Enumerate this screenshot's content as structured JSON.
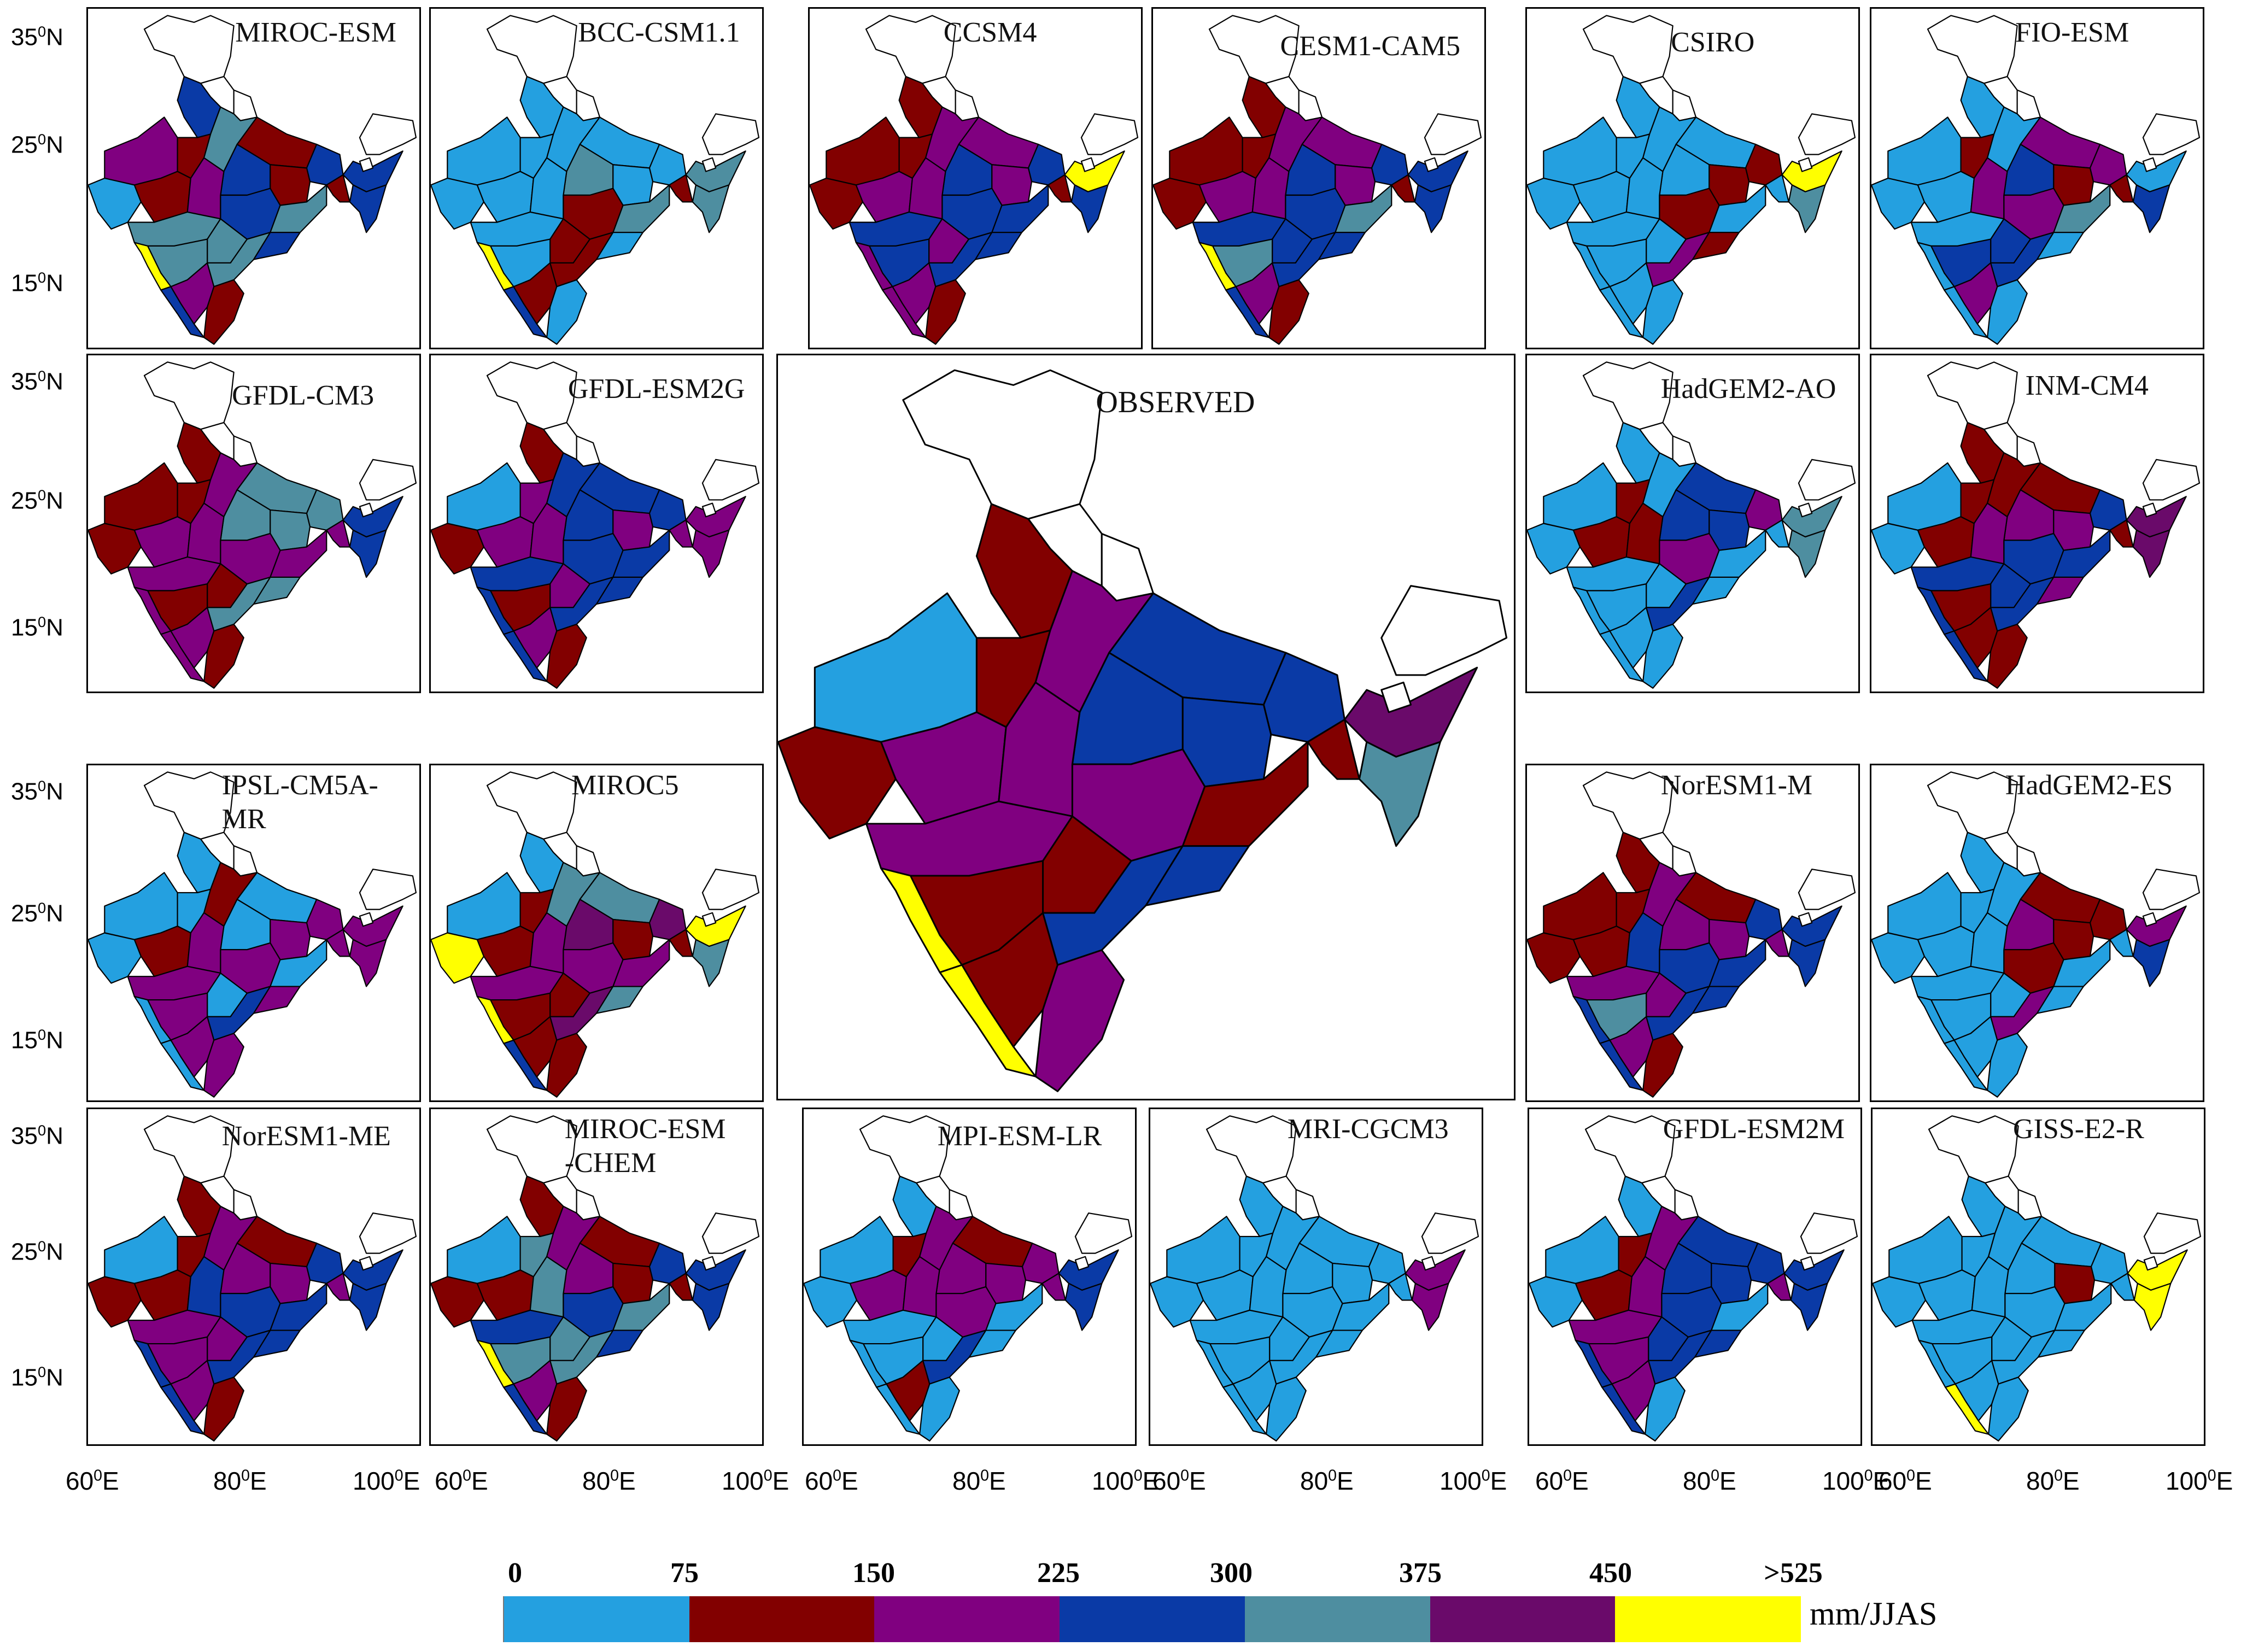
{
  "colors": {
    "0-75": "#24a0e0",
    "75-150": "#820000",
    "150-225": "#800080",
    "225-300": "#0a3aa6",
    "300-375": "#4e8ea0",
    "375-450": "#6a0a6a",
    ">525": "#ffff00",
    "none": "#ffffff"
  },
  "panels": [
    {
      "id": "miroc-esm",
      "label": "MIROC-ESM",
      "palette": [
        "150-225",
        "225-300",
        "75-150",
        "300-375",
        "0-75",
        "75-150",
        "75-150",
        "225-300",
        "150-225",
        "300-375",
        "225-300",
        "75-150",
        "225-300",
        "300-375",
        "300-375",
        "300-375",
        ">525",
        "225-300",
        "150-225",
        "300-375",
        "225-300",
        "75-150",
        "225-300",
        "225-300",
        "75-150"
      ]
    },
    {
      "id": "bcc-csm1-1",
      "label": "BCC-CSM1.1",
      "palette": [
        "0-75",
        "0-75",
        "0-75",
        "0-75",
        "0-75",
        "0-75",
        "0-75",
        "300-375",
        "0-75",
        "0-75",
        "0-75",
        "0-75",
        "75-150",
        "300-375",
        "75-150",
        "0-75",
        ">525",
        "225-300",
        "75-150",
        "75-150",
        "0-75",
        "0-75",
        "300-375",
        "300-375",
        "75-150"
      ]
    },
    {
      "id": "ccsm4",
      "label": "CCSM4",
      "palette": [
        "75-150",
        "75-150",
        "75-150",
        "150-225",
        "75-150",
        "150-225",
        "150-225",
        "225-300",
        "150-225",
        "225-300",
        "225-300",
        "150-225",
        "225-300",
        "225-300",
        "150-225",
        "225-300",
        "150-225",
        "150-225",
        "150-225",
        "225-300",
        "225-300",
        "75-150",
        ">525",
        "225-300",
        "75-150"
      ]
    },
    {
      "id": "cesm1-cam5",
      "label": "CESM1-CAM5",
      "palette": [
        "75-150",
        "75-150",
        "75-150",
        "150-225",
        "75-150",
        "150-225",
        "150-225",
        "225-300",
        "150-225",
        "225-300",
        "225-300",
        "150-225",
        "225-300",
        "300-375",
        "225-300",
        "300-375",
        ">525",
        "225-300",
        "150-225",
        "225-300",
        "225-300",
        "75-150",
        "225-300",
        "225-300",
        "75-150"
      ]
    },
    {
      "id": "csiro",
      "label": "CSIRO",
      "palette": [
        "0-75",
        "0-75",
        "0-75",
        "0-75",
        "0-75",
        "0-75",
        "0-75",
        "0-75",
        "0-75",
        "0-75",
        "75-150",
        "75-150",
        "75-150",
        "0-75",
        "0-75",
        "0-75",
        "0-75",
        "0-75",
        "0-75",
        "150-225",
        "75-150",
        "0-75",
        ">525",
        "300-375",
        "0-75"
      ]
    },
    {
      "id": "fio-esm",
      "label": "FIO-ESM",
      "palette": [
        "0-75",
        "0-75",
        "75-150",
        "0-75",
        "0-75",
        "0-75",
        "150-225",
        "225-300",
        "150-225",
        "0-75",
        "150-225",
        "75-150",
        "150-225",
        "300-375",
        "225-300",
        "225-300",
        "0-75",
        "0-75",
        "150-225",
        "225-300",
        "0-75",
        "0-75",
        "0-75",
        "225-300",
        "75-150"
      ]
    },
    {
      "id": "gfdl-cm3",
      "label": "GFDL-CM3",
      "palette": [
        "75-150",
        "75-150",
        "75-150",
        "150-225",
        "75-150",
        "150-225",
        "300-375",
        "300-375",
        "150-225",
        "150-225",
        "300-375",
        "300-375",
        "150-225",
        "150-225",
        "75-150",
        "75-150",
        "150-225",
        "150-225",
        "150-225",
        "300-375",
        "300-375",
        "75-150",
        "225-300",
        "225-300",
        "150-225"
      ]
    },
    {
      "id": "gfdl-esm2g",
      "label": "GFDL-ESM2G",
      "palette": [
        "0-75",
        "75-150",
        "150-225",
        "225-300",
        "75-150",
        "150-225",
        "225-300",
        "225-300",
        "150-225",
        "225-300",
        "225-300",
        "150-225",
        "225-300",
        "225-300",
        "150-225",
        "75-150",
        "225-300",
        "225-300",
        "150-225",
        "225-300",
        "225-300",
        "75-150",
        "150-225",
        "150-225",
        "150-225"
      ]
    },
    {
      "id": "observed",
      "label": "OBSERVED",
      "big": true,
      "palette": [
        "0-75",
        "75-150",
        "75-150",
        "150-225",
        "75-150",
        "150-225",
        "225-300",
        "225-300",
        "150-225",
        "150-225",
        "225-300",
        "225-300",
        "150-225",
        "75-150",
        "75-150",
        "75-150",
        ">525",
        ">525",
        "75-150",
        "225-300",
        "225-300",
        "150-225",
        "375-450",
        "300-375",
        "75-150"
      ]
    },
    {
      "id": "hadgem2-ao",
      "label": "HadGEM2-AO",
      "palette": [
        "0-75",
        "0-75",
        "75-150",
        "0-75",
        "0-75",
        "75-150",
        "225-300",
        "225-300",
        "75-150",
        "0-75",
        "150-225",
        "225-300",
        "150-225",
        "0-75",
        "0-75",
        "0-75",
        "0-75",
        "0-75",
        "0-75",
        "225-300",
        "0-75",
        "0-75",
        "300-375",
        "300-375",
        "0-75"
      ]
    },
    {
      "id": "inm-cm4",
      "label": "INM-CM4",
      "palette": [
        "0-75",
        "75-150",
        "75-150",
        "75-150",
        "0-75",
        "75-150",
        "75-150",
        "150-225",
        "150-225",
        "225-300",
        "225-300",
        "150-225",
        "225-300",
        "225-300",
        "225-300",
        "75-150",
        "225-300",
        "225-300",
        "75-150",
        "225-300",
        "150-225",
        "75-150",
        "375-450",
        "375-450",
        "75-150"
      ]
    },
    {
      "id": "ipsl-cm5a-mr",
      "label": "IPSL-CM5A-\nMR",
      "palette": [
        "0-75",
        "0-75",
        "0-75",
        "75-150",
        "0-75",
        "75-150",
        "0-75",
        "0-75",
        "150-225",
        "150-225",
        "150-225",
        "150-225",
        "150-225",
        "0-75",
        "0-75",
        "150-225",
        "0-75",
        "0-75",
        "150-225",
        "225-300",
        "150-225",
        "150-225",
        "150-225",
        "150-225",
        "150-225"
      ]
    },
    {
      "id": "miroc5",
      "label": "MIROC5",
      "palette": [
        "0-75",
        "0-75",
        "75-150",
        "300-375",
        ">525",
        "75-150",
        "300-375",
        "375-450",
        "150-225",
        "150-225",
        "375-450",
        "75-150",
        "150-225",
        "150-225",
        "75-150",
        "75-150",
        ">525",
        "225-300",
        "75-150",
        "375-450",
        "300-375",
        "75-150",
        ">525",
        "300-375",
        "75-150"
      ]
    },
    {
      "id": "noresm1-m",
      "label": "NorESM1-M",
      "palette": [
        "75-150",
        "75-150",
        "75-150",
        "150-225",
        "75-150",
        "75-150",
        "75-150",
        "150-225",
        "225-300",
        "150-225",
        "225-300",
        "150-225",
        "225-300",
        "225-300",
        "150-225",
        "300-375",
        "225-300",
        "225-300",
        "150-225",
        "225-300",
        "225-300",
        "75-150",
        "225-300",
        "225-300",
        "150-225"
      ]
    },
    {
      "id": "hadgem2-es",
      "label": "HadGEM2-ES",
      "palette": [
        "0-75",
        "0-75",
        "0-75",
        "0-75",
        "0-75",
        "0-75",
        "75-150",
        "150-225",
        "0-75",
        "0-75",
        "75-150",
        "75-150",
        "75-150",
        "0-75",
        "0-75",
        "0-75",
        "0-75",
        "0-75",
        "0-75",
        "150-225",
        "0-75",
        "0-75",
        "150-225",
        "225-300",
        "0-75"
      ]
    },
    {
      "id": "noresm1-me",
      "label": "NorESM1-ME",
      "palette": [
        "0-75",
        "75-150",
        "75-150",
        "150-225",
        "75-150",
        "75-150",
        "75-150",
        "150-225",
        "225-300",
        "150-225",
        "225-300",
        "150-225",
        "225-300",
        "225-300",
        "150-225",
        "150-225",
        "225-300",
        "225-300",
        "150-225",
        "225-300",
        "225-300",
        "75-150",
        "225-300",
        "225-300",
        "150-225"
      ]
    },
    {
      "id": "miroc-esm-chem",
      "label": "MIROC-ESM\n-CHEM",
      "palette": [
        "0-75",
        "75-150",
        "300-375",
        "150-225",
        "75-150",
        "75-150",
        "75-150",
        "150-225",
        "300-375",
        "225-300",
        "225-300",
        "75-150",
        "225-300",
        "300-375",
        "300-375",
        "300-375",
        ">525",
        "225-300",
        "150-225",
        "300-375",
        "225-300",
        "75-150",
        "225-300",
        "225-300",
        "75-150"
      ]
    },
    {
      "id": "mpi-esm-lr",
      "label": "MPI-ESM-LR",
      "palette": [
        "0-75",
        "0-75",
        "75-150",
        "150-225",
        "0-75",
        "150-225",
        "75-150",
        "150-225",
        "150-225",
        "0-75",
        "150-225",
        "150-225",
        "150-225",
        "0-75",
        "0-75",
        "0-75",
        "0-75",
        "0-75",
        "75-150",
        "225-300",
        "0-75",
        "0-75",
        "225-300",
        "225-300",
        "150-225"
      ]
    },
    {
      "id": "mri-cgcm3",
      "label": "MRI-CGCM3",
      "palette": [
        "0-75",
        "0-75",
        "0-75",
        "0-75",
        "0-75",
        "0-75",
        "0-75",
        "0-75",
        "0-75",
        "0-75",
        "0-75",
        "0-75",
        "0-75",
        "0-75",
        "0-75",
        "0-75",
        "0-75",
        "0-75",
        "0-75",
        "0-75",
        "0-75",
        "0-75",
        "150-225",
        "150-225",
        "0-75"
      ]
    },
    {
      "id": "gfdl-esm2m",
      "label": "GFDL-ESM2M",
      "palette": [
        "0-75",
        "0-75",
        "75-150",
        "150-225",
        "0-75",
        "75-150",
        "225-300",
        "225-300",
        "150-225",
        "150-225",
        "225-300",
        "225-300",
        "225-300",
        "0-75",
        "225-300",
        "150-225",
        "225-300",
        "225-300",
        "150-225",
        "225-300",
        "225-300",
        "0-75",
        "225-300",
        "225-300",
        "150-225"
      ]
    },
    {
      "id": "giss-e2-r",
      "label": "GISS-E2-R",
      "palette": [
        "0-75",
        "0-75",
        "0-75",
        "0-75",
        "0-75",
        "0-75",
        "0-75",
        "0-75",
        "0-75",
        "0-75",
        "0-75",
        "75-150",
        "0-75",
        "0-75",
        "0-75",
        "0-75",
        "0-75",
        ">525",
        "0-75",
        "0-75",
        "0-75",
        "0-75",
        ">525",
        ">525",
        "0-75"
      ]
    }
  ],
  "axes": {
    "lat_labels": [
      {
        "text": "35",
        "sup": "0",
        "suffix": "N"
      },
      {
        "text": "25",
        "sup": "0",
        "suffix": "N"
      },
      {
        "text": "15",
        "sup": "0",
        "suffix": "N"
      }
    ],
    "lon_labels": [
      {
        "text": "60",
        "sup": "0",
        "suffix": "E"
      },
      {
        "text": "80",
        "sup": "0",
        "suffix": "E"
      },
      {
        "text": "100",
        "sup": "0",
        "suffix": "E"
      }
    ]
  },
  "legend": {
    "tick_labels": [
      "0",
      "75",
      "150",
      "225",
      "300",
      "375",
      "450",
      ">525"
    ],
    "classes": [
      "0-75",
      "75-150",
      "150-225",
      "225-300",
      "300-375",
      "375-450",
      ">525"
    ],
    "units": "mm/JJAS"
  }
}
